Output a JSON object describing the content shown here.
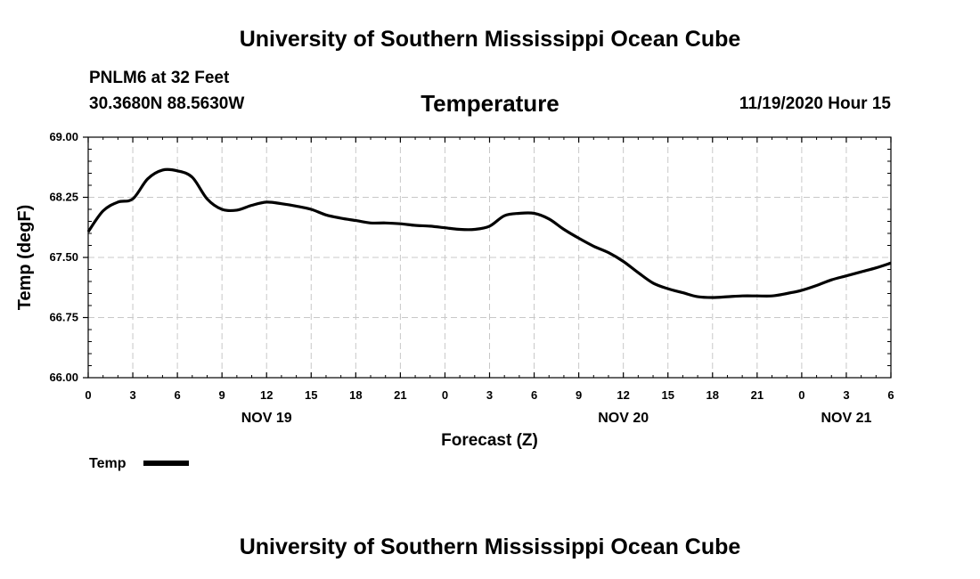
{
  "header": {
    "title": "University of Southern Mississippi Ocean Cube",
    "station": "PNLM6 at 32 Feet",
    "coords": "30.3680N 88.5630W",
    "chart_title": "Temperature",
    "timestamp": "11/19/2020 Hour 15"
  },
  "footer": {
    "title": "University of Southern Mississippi Ocean Cube"
  },
  "colors": {
    "line": "#000000",
    "grid": "#c8c8c8",
    "background": "#ffffff"
  },
  "chart_data": {
    "type": "line",
    "title": "Temperature",
    "xlabel": "Forecast (Z)",
    "ylabel": "Temp (degF)",
    "ylim": [
      66.0,
      69.0
    ],
    "xlim": [
      0,
      54
    ],
    "yticks": [
      66.0,
      66.75,
      67.5,
      68.25,
      69.0
    ],
    "ytick_labels": [
      "66.00",
      "66.75",
      "67.50",
      "68.25",
      "69.00"
    ],
    "xticks": [
      0,
      3,
      6,
      9,
      12,
      15,
      18,
      21,
      24,
      27,
      30,
      33,
      36,
      39,
      42,
      45,
      48,
      51,
      54
    ],
    "xtick_labels": [
      "0",
      "3",
      "6",
      "9",
      "12",
      "15",
      "18",
      "21",
      "0",
      "3",
      "6",
      "9",
      "12",
      "15",
      "18",
      "21",
      "0",
      "3",
      "6"
    ],
    "date_labels": [
      {
        "x": 12,
        "label": "NOV 19"
      },
      {
        "x": 36,
        "label": "NOV 20"
      },
      {
        "x": 51,
        "label": "NOV 21"
      }
    ],
    "grid": true,
    "legend": {
      "position": "bottom-left",
      "entries": [
        "Temp"
      ]
    },
    "series": [
      {
        "name": "Temp",
        "x": [
          0,
          1,
          2,
          3,
          4,
          5,
          6,
          7,
          8,
          9,
          10,
          11,
          12,
          13,
          14,
          15,
          16,
          17,
          18,
          19,
          20,
          21,
          22,
          23,
          24,
          25,
          26,
          27,
          28,
          29,
          30,
          31,
          32,
          33,
          34,
          35,
          36,
          37,
          38,
          39,
          40,
          41,
          42,
          43,
          44,
          45,
          46,
          47,
          48,
          49,
          50,
          51,
          52,
          53,
          54
        ],
        "values": [
          67.82,
          68.08,
          68.19,
          68.23,
          68.48,
          68.59,
          68.58,
          68.5,
          68.23,
          68.1,
          68.09,
          68.15,
          68.19,
          68.17,
          68.14,
          68.1,
          68.03,
          67.99,
          67.96,
          67.93,
          67.93,
          67.92,
          67.9,
          67.89,
          67.87,
          67.85,
          67.85,
          67.89,
          68.02,
          68.05,
          68.05,
          67.98,
          67.85,
          67.74,
          67.64,
          67.56,
          67.45,
          67.31,
          67.18,
          67.11,
          67.06,
          67.01,
          67.0,
          67.01,
          67.02,
          67.02,
          67.02,
          67.05,
          67.09,
          67.15,
          67.22,
          67.27,
          67.32,
          67.37,
          67.43
        ]
      }
    ]
  }
}
